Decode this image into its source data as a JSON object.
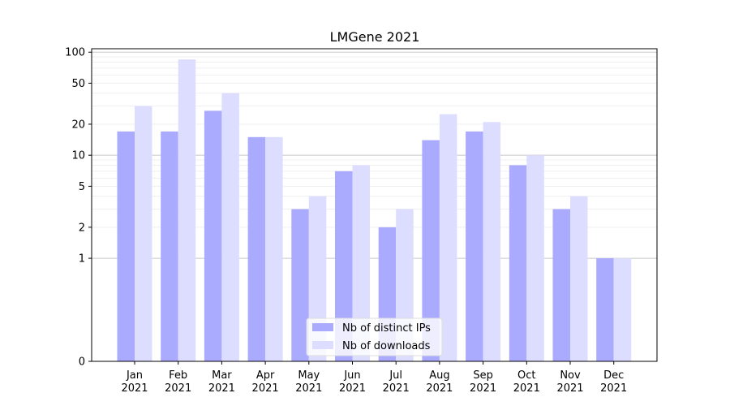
{
  "chart_data": {
    "type": "bar",
    "title": "LMGene 2021",
    "categories": [
      "Jan\n2021",
      "Feb\n2021",
      "Mar\n2021",
      "Apr\n2021",
      "May\n2021",
      "Jun\n2021",
      "Jul\n2021",
      "Aug\n2021",
      "Sep\n2021",
      "Oct\n2021",
      "Nov\n2021",
      "Dec\n2021"
    ],
    "series": [
      {
        "name": "Nb of distinct IPs",
        "values": [
          17,
          17,
          27,
          15,
          3,
          7,
          2,
          14,
          17,
          8,
          3,
          1
        ]
      },
      {
        "name": "Nb of downloads",
        "values": [
          30,
          85,
          40,
          15,
          4,
          8,
          3,
          25,
          21,
          10,
          4,
          1
        ]
      }
    ],
    "y_scale": "symlog",
    "y_ticks": [
      0,
      1,
      2,
      5,
      10,
      20,
      50,
      100
    ],
    "ylim": [
      0,
      108
    ],
    "grid": "y",
    "legend_position": "lower center",
    "colors": {
      "series_0": "#aaaaff",
      "series_1": "#ddddff",
      "grid_major": "#c8c8c8",
      "grid_minor": "#efefef",
      "axis": "#000000"
    }
  }
}
